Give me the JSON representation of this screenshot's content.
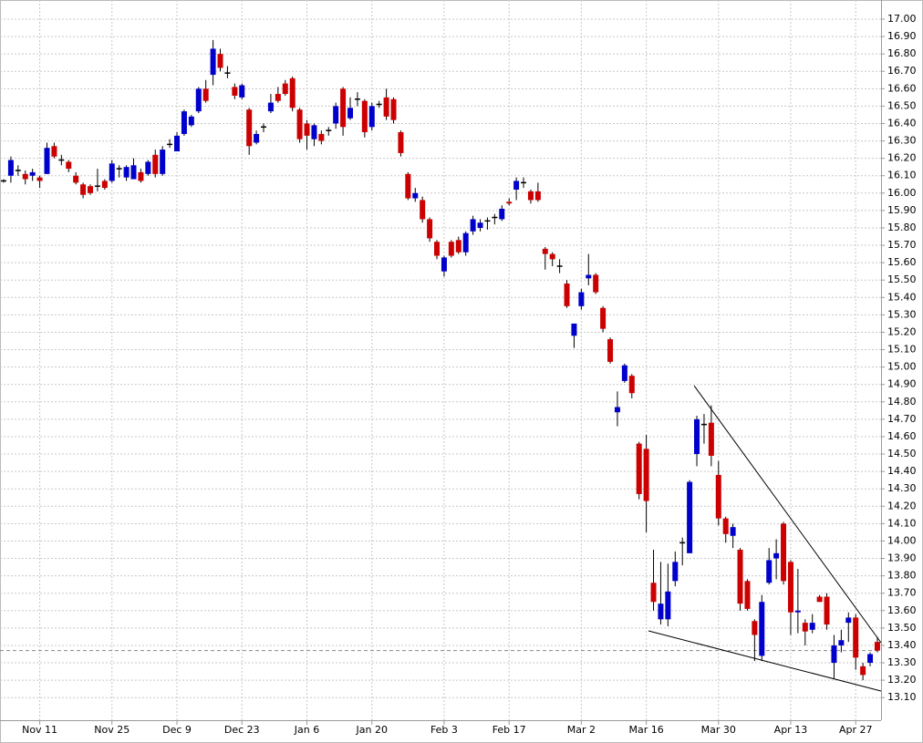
{
  "chart_data": {
    "type": "candlestick",
    "categories": [
      null,
      null,
      null,
      null,
      null,
      "Nov 11",
      null,
      null,
      null,
      null,
      null,
      null,
      null,
      null,
      null,
      "Nov 25",
      null,
      null,
      null,
      null,
      null,
      null,
      null,
      null,
      "Dec 9",
      null,
      null,
      null,
      null,
      null,
      null,
      null,
      null,
      "Dec 23",
      null,
      null,
      null,
      null,
      null,
      null,
      null,
      null,
      "Jan 6",
      null,
      null,
      null,
      null,
      null,
      null,
      null,
      null,
      "Jan 20",
      null,
      null,
      null,
      null,
      null,
      null,
      null,
      null,
      null,
      "Feb 3",
      null,
      null,
      null,
      null,
      null,
      null,
      null,
      null,
      "Feb 17",
      null,
      null,
      null,
      null,
      null,
      null,
      null,
      null,
      null,
      "Mar 2",
      null,
      null,
      null,
      null,
      null,
      null,
      null,
      null,
      "Mar 16",
      null,
      null,
      null,
      null,
      null,
      null,
      null,
      null,
      null,
      "Mar 30",
      null,
      null,
      null,
      null,
      null,
      null,
      null,
      null,
      null,
      "Apr 13",
      null,
      null,
      null,
      null,
      null,
      null,
      null,
      null,
      "Apr 27",
      null,
      null,
      null
    ],
    "ohlc": [
      [
        16.07,
        16.08,
        16.06,
        16.07
      ],
      [
        16.1,
        16.21,
        16.06,
        16.19
      ],
      [
        16.13,
        16.16,
        16.1,
        16.13
      ],
      [
        16.11,
        16.13,
        16.05,
        16.08
      ],
      [
        16.1,
        16.14,
        16.07,
        16.12
      ],
      [
        16.09,
        16.1,
        16.03,
        16.07
      ],
      [
        16.11,
        16.29,
        16.11,
        16.26
      ],
      [
        16.27,
        16.29,
        16.2,
        16.21
      ],
      [
        16.19,
        16.22,
        16.16,
        16.19
      ],
      [
        16.18,
        16.19,
        16.12,
        16.14
      ],
      [
        16.1,
        16.12,
        16.05,
        16.06
      ],
      [
        16.05,
        16.06,
        15.97,
        15.99
      ],
      [
        16.04,
        16.05,
        15.99,
        16.0
      ],
      [
        16.04,
        16.14,
        16.01,
        16.04
      ],
      [
        16.07,
        16.08,
        16.02,
        16.03
      ],
      [
        16.07,
        16.19,
        16.06,
        16.17
      ],
      [
        16.14,
        16.16,
        16.09,
        16.14
      ],
      [
        16.09,
        16.16,
        16.07,
        16.15
      ],
      [
        16.08,
        16.2,
        16.08,
        16.16
      ],
      [
        16.12,
        16.14,
        16.06,
        16.07
      ],
      [
        16.11,
        16.19,
        16.1,
        16.18
      ],
      [
        16.22,
        16.25,
        16.09,
        16.11
      ],
      [
        16.11,
        16.27,
        16.1,
        16.25
      ],
      [
        16.28,
        16.31,
        16.26,
        16.28
      ],
      [
        16.24,
        16.35,
        16.24,
        16.33
      ],
      [
        16.34,
        16.48,
        16.33,
        16.47
      ],
      [
        16.39,
        16.45,
        16.38,
        16.44
      ],
      [
        16.47,
        16.61,
        16.46,
        16.6
      ],
      [
        16.6,
        16.65,
        16.52,
        16.53
      ],
      [
        16.68,
        16.88,
        16.62,
        16.83
      ],
      [
        16.8,
        16.83,
        16.7,
        16.72
      ],
      [
        16.69,
        16.73,
        16.66,
        16.69
      ],
      [
        16.61,
        16.63,
        16.54,
        16.56
      ],
      [
        16.55,
        16.63,
        16.54,
        16.62
      ],
      [
        16.48,
        16.49,
        16.22,
        16.27
      ],
      [
        16.29,
        16.36,
        16.28,
        16.34
      ],
      [
        16.38,
        16.4,
        16.35,
        16.38
      ],
      [
        16.47,
        16.57,
        16.46,
        16.52
      ],
      [
        16.57,
        16.61,
        16.52,
        16.53
      ],
      [
        16.63,
        16.65,
        16.56,
        16.57
      ],
      [
        16.66,
        16.67,
        16.47,
        16.49
      ],
      [
        16.48,
        16.49,
        16.29,
        16.31
      ],
      [
        16.4,
        16.42,
        16.25,
        16.33
      ],
      [
        16.31,
        16.4,
        16.27,
        16.39
      ],
      [
        16.34,
        16.36,
        16.28,
        16.3
      ],
      [
        16.36,
        16.38,
        16.33,
        16.36
      ],
      [
        16.4,
        16.52,
        16.37,
        16.5
      ],
      [
        16.6,
        16.61,
        16.33,
        16.38
      ],
      [
        16.43,
        16.55,
        16.42,
        16.49
      ],
      [
        16.54,
        16.58,
        16.5,
        16.54
      ],
      [
        16.53,
        16.54,
        16.32,
        16.35
      ],
      [
        16.38,
        16.52,
        16.36,
        16.5
      ],
      [
        16.51,
        16.53,
        16.49,
        16.51
      ],
      [
        16.55,
        16.6,
        16.42,
        16.44
      ],
      [
        16.54,
        16.55,
        16.4,
        16.42
      ],
      [
        16.35,
        16.36,
        16.21,
        16.23
      ],
      [
        16.11,
        16.12,
        15.96,
        15.97
      ],
      [
        15.97,
        16.03,
        15.95,
        16.0
      ],
      [
        15.96,
        15.98,
        15.83,
        15.85
      ],
      [
        15.85,
        15.86,
        15.72,
        15.74
      ],
      [
        15.72,
        15.73,
        15.62,
        15.64
      ],
      [
        15.55,
        15.64,
        15.52,
        15.63
      ],
      [
        15.72,
        15.73,
        15.63,
        15.64
      ],
      [
        15.73,
        15.75,
        15.65,
        15.66
      ],
      [
        15.66,
        15.78,
        15.64,
        15.77
      ],
      [
        15.78,
        15.87,
        15.76,
        15.85
      ],
      [
        15.8,
        15.85,
        15.78,
        15.83
      ],
      [
        15.84,
        15.86,
        15.79,
        15.84
      ],
      [
        15.86,
        15.88,
        15.82,
        15.86
      ],
      [
        15.85,
        15.93,
        15.84,
        15.91
      ],
      [
        15.95,
        15.97,
        15.93,
        15.94
      ],
      [
        16.02,
        16.09,
        15.96,
        16.07
      ],
      [
        16.06,
        16.09,
        16.03,
        16.06
      ],
      [
        16.01,
        16.02,
        15.94,
        15.96
      ],
      [
        16.01,
        16.06,
        15.95,
        15.96
      ],
      [
        15.68,
        15.69,
        15.56,
        15.65
      ],
      [
        15.65,
        15.66,
        15.58,
        15.62
      ],
      [
        15.58,
        15.62,
        15.54,
        15.58
      ],
      [
        15.48,
        15.5,
        15.34,
        15.35
      ],
      [
        15.18,
        15.25,
        15.11,
        15.25
      ],
      [
        15.35,
        15.45,
        15.33,
        15.43
      ],
      [
        15.51,
        15.65,
        15.47,
        15.53
      ],
      [
        15.53,
        15.54,
        15.42,
        15.43
      ],
      [
        15.34,
        15.35,
        15.2,
        15.22
      ],
      [
        15.16,
        15.17,
        15.02,
        15.03
      ],
      [
        14.74,
        14.86,
        14.66,
        14.77
      ],
      [
        14.92,
        15.02,
        14.91,
        15.01
      ],
      [
        14.95,
        14.96,
        14.82,
        14.85
      ],
      [
        14.56,
        14.57,
        14.24,
        14.27
      ],
      [
        14.53,
        14.61,
        14.05,
        14.23
      ],
      [
        13.76,
        13.95,
        13.6,
        13.65
      ],
      [
        13.55,
        13.88,
        13.52,
        13.64
      ],
      [
        13.55,
        13.87,
        13.51,
        13.71
      ],
      [
        13.77,
        13.94,
        13.74,
        13.88
      ],
      [
        13.99,
        14.02,
        13.86,
        13.99
      ],
      [
        13.93,
        14.35,
        13.93,
        14.34
      ],
      [
        14.5,
        14.72,
        14.43,
        14.7
      ],
      [
        14.67,
        14.73,
        14.56,
        14.67
      ],
      [
        14.68,
        14.78,
        14.43,
        14.49
      ],
      [
        14.38,
        14.46,
        14.09,
        14.13
      ],
      [
        14.13,
        14.14,
        13.99,
        14.04
      ],
      [
        14.03,
        14.1,
        13.96,
        14.08
      ],
      [
        13.95,
        13.96,
        13.6,
        13.64
      ],
      [
        13.77,
        13.78,
        13.6,
        13.61
      ],
      [
        13.54,
        13.55,
        13.31,
        13.46
      ],
      [
        13.34,
        13.69,
        13.31,
        13.65
      ],
      [
        13.76,
        13.96,
        13.75,
        13.89
      ],
      [
        13.9,
        14.01,
        13.78,
        13.93
      ],
      [
        14.1,
        14.11,
        13.75,
        13.77
      ],
      [
        13.88,
        13.89,
        13.46,
        13.59
      ],
      [
        13.59,
        13.84,
        13.47,
        13.6
      ],
      [
        13.53,
        13.55,
        13.4,
        13.48
      ],
      [
        13.49,
        13.58,
        13.47,
        13.53
      ],
      [
        13.68,
        13.69,
        13.65,
        13.65
      ],
      [
        13.68,
        13.7,
        13.49,
        13.52
      ],
      [
        13.3,
        13.46,
        13.21,
        13.4
      ],
      [
        13.4,
        13.49,
        13.36,
        13.43
      ],
      [
        13.53,
        13.59,
        13.42,
        13.56
      ],
      [
        13.56,
        13.58,
        13.26,
        13.33
      ],
      [
        13.28,
        13.3,
        13.2,
        13.23
      ],
      [
        13.3,
        13.36,
        13.28,
        13.35
      ],
      [
        13.42,
        13.45,
        13.36,
        13.37
      ]
    ],
    "up_color": "#0000cc",
    "down_color": "#cc0000",
    "ylim": [
      12.97,
      17.11
    ],
    "yticks": [
      {
        "value": 13.1,
        "label": "13.10"
      },
      {
        "value": 13.2,
        "label": "13.20"
      },
      {
        "value": 13.3,
        "label": "13.30"
      },
      {
        "value": 13.4,
        "label": "13.40"
      },
      {
        "value": 13.5,
        "label": "13.50"
      },
      {
        "value": 13.6,
        "label": "13.60"
      },
      {
        "value": 13.7,
        "label": "13.70"
      },
      {
        "value": 13.8,
        "label": "13.80"
      },
      {
        "value": 13.9,
        "label": "13.90"
      },
      {
        "value": 14,
        "label": "14.00"
      },
      {
        "value": 14.1,
        "label": "14.10"
      },
      {
        "value": 14.2,
        "label": "14.20"
      },
      {
        "value": 14.3,
        "label": "14.30"
      },
      {
        "value": 14.4,
        "label": "14.40"
      },
      {
        "value": 14.5,
        "label": "14.50"
      },
      {
        "value": 14.6,
        "label": "14.60"
      },
      {
        "value": 14.7,
        "label": "14.70"
      },
      {
        "value": 14.8,
        "label": "14.80"
      },
      {
        "value": 14.9,
        "label": "14.90"
      },
      {
        "value": 15,
        "label": "15.00"
      },
      {
        "value": 15.1,
        "label": "15.10"
      },
      {
        "value": 15.2,
        "label": "15.20"
      },
      {
        "value": 15.3,
        "label": "15.30"
      },
      {
        "value": 15.4,
        "label": "15.40"
      },
      {
        "value": 15.5,
        "label": "15.50"
      },
      {
        "value": 15.6,
        "label": "15.60"
      },
      {
        "value": 15.7,
        "label": "15.70"
      },
      {
        "value": 15.8,
        "label": "15.80"
      },
      {
        "value": 15.9,
        "label": "15.90"
      },
      {
        "value": 16,
        "label": "16.00"
      },
      {
        "value": 16.1,
        "label": "16.10"
      },
      {
        "value": 16.2,
        "label": "16.20"
      },
      {
        "value": 16.3,
        "label": "16.30"
      },
      {
        "value": 16.4,
        "label": "16.40"
      },
      {
        "value": 16.5,
        "label": "16.50"
      },
      {
        "value": 16.6,
        "label": "16.60"
      },
      {
        "value": 16.7,
        "label": "16.70"
      },
      {
        "value": 16.8,
        "label": "16.80"
      },
      {
        "value": 16.9,
        "label": "16.90"
      },
      {
        "value": 17,
        "label": "17.00"
      }
    ],
    "grid": true
  }
}
